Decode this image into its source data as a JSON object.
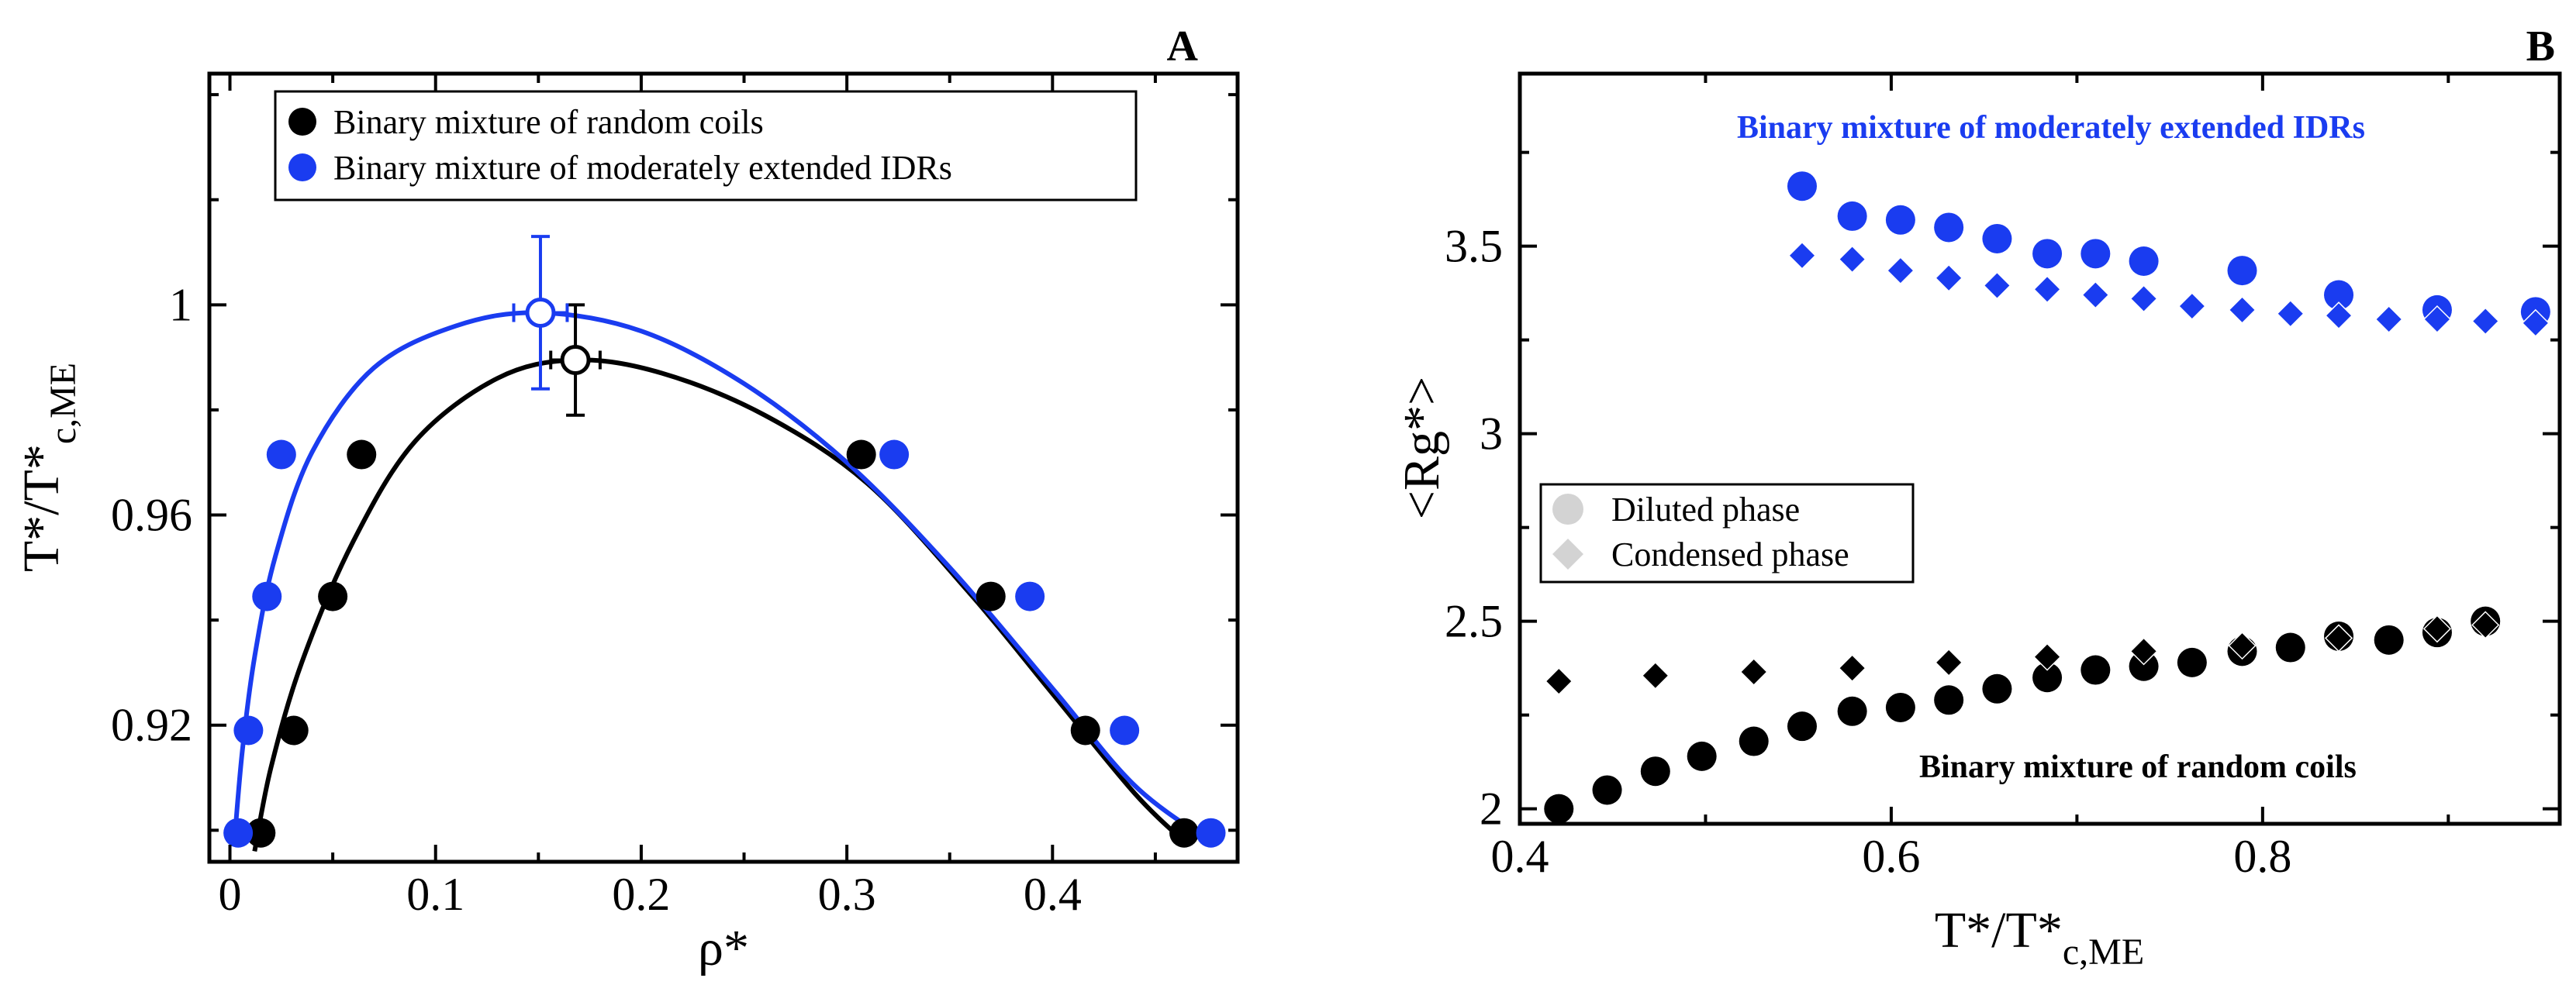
{
  "chart_data": [
    {
      "type": "scatter",
      "panel_label": "A",
      "xlabel": "ρ*",
      "ylabel": "T*/T*",
      "ylabel_sub": "c,ME",
      "xlim": [
        -0.01,
        0.49
      ],
      "ylim": [
        0.894,
        1.044
      ],
      "x_ticks": [
        0,
        0.1,
        0.2,
        0.3,
        0.4
      ],
      "x_tick_labels": [
        "0",
        "0.1",
        "0.2",
        "0.3",
        "0.4"
      ],
      "y_ticks": [
        0.92,
        0.96,
        1.0
      ],
      "y_tick_labels": [
        "0.92",
        "0.96",
        "1"
      ],
      "legend": {
        "position": "top-center",
        "entries": [
          {
            "label": "Binary mixture of random coils",
            "color": "#000000",
            "marker": "circle"
          },
          {
            "label": "Binary mixture of moderately extended IDRs",
            "color": "#1a3cf0",
            "marker": "circle"
          }
        ]
      },
      "series": [
        {
          "name": "Binary mixture of random coils",
          "color": "#000000",
          "x": [
            0.015,
            0.031,
            0.05,
            0.064,
            0.307,
            0.37,
            0.416,
            0.464
          ],
          "y": [
            0.8995,
            0.919,
            0.9445,
            0.9715,
            0.9715,
            0.9445,
            0.919,
            0.8995
          ],
          "critical_point": {
            "x": 0.168,
            "y": 0.9895,
            "x_err": 0.012,
            "y_err": 0.0105
          },
          "fit_curve": {
            "x": [
              0.012,
              0.02,
              0.035,
              0.06,
              0.09,
              0.13,
              0.168,
              0.21,
              0.26,
              0.31,
              0.36,
              0.4,
              0.44,
              0.465
            ],
            "y": [
              0.896,
              0.912,
              0.932,
              0.955,
              0.974,
              0.986,
              0.9895,
              0.987,
              0.979,
              0.966,
              0.945,
              0.926,
              0.907,
              0.8975
            ]
          }
        },
        {
          "name": "Binary mixture of moderately extended IDRs",
          "color": "#1a3cf0",
          "x": [
            0.004,
            0.009,
            0.018,
            0.025,
            0.323,
            0.389,
            0.435,
            0.477
          ],
          "y": [
            0.8995,
            0.919,
            0.9445,
            0.9715,
            0.9715,
            0.9445,
            0.919,
            0.8995
          ],
          "critical_point": {
            "x": 0.151,
            "y": 0.9985,
            "x_err": 0.013,
            "y_err": 0.0145
          },
          "fit_curve": {
            "x": [
              0.002,
              0.006,
              0.012,
              0.022,
              0.04,
              0.07,
              0.11,
              0.151,
              0.2,
              0.25,
              0.3,
              0.35,
              0.4,
              0.44,
              0.478
            ],
            "y": [
              0.897,
              0.915,
              0.933,
              0.952,
              0.972,
              0.988,
              0.996,
              0.9985,
              0.995,
              0.985,
              0.97,
              0.95,
              0.927,
              0.9085,
              0.8975
            ]
          }
        }
      ]
    },
    {
      "type": "scatter",
      "panel_label": "B",
      "xlabel": "T*/T*",
      "xlabel_sub": "c,ME",
      "ylabel": "<Rg*>",
      "xlim": [
        0.4,
        0.96
      ],
      "ylim": [
        1.96,
        3.96
      ],
      "x_ticks": [
        0.4,
        0.6,
        0.8
      ],
      "x_tick_labels": [
        "0.4",
        "0.6",
        "0.8"
      ],
      "y_ticks": [
        2.0,
        2.5,
        3.0,
        3.5
      ],
      "y_tick_labels": [
        "2",
        "2.5",
        "3",
        "3.5"
      ],
      "annotations": [
        {
          "text": "Binary mixture of moderately extended IDRs",
          "color": "#1a3cf0",
          "position": "top-right"
        },
        {
          "text": "Binary mixture of random coils",
          "color": "#000000",
          "position": "lower-right"
        }
      ],
      "legend": {
        "position": "center-left",
        "entries": [
          {
            "label": "Diluted phase",
            "color": "#d3d3d3",
            "marker": "circle"
          },
          {
            "label": "Condensed phase",
            "color": "#d3d3d3",
            "marker": "diamond"
          }
        ]
      },
      "series": [
        {
          "name": "Random coils - Diluted phase",
          "color": "#000000",
          "marker": "circle",
          "x": [
            0.421,
            0.447,
            0.473,
            0.498,
            0.526,
            0.552,
            0.579,
            0.605,
            0.631,
            0.657,
            0.684,
            0.71,
            0.736,
            0.762,
            0.789,
            0.815,
            0.841,
            0.868,
            0.894,
            0.92
          ],
          "y": [
            2.0,
            2.05,
            2.1,
            2.14,
            2.18,
            2.22,
            2.26,
            2.27,
            2.29,
            2.32,
            2.35,
            2.37,
            2.38,
            2.39,
            2.42,
            2.43,
            2.46,
            2.45,
            2.47,
            2.5
          ]
        },
        {
          "name": "Random coils - Condensed phase",
          "color": "#000000",
          "marker": "diamond",
          "x": [
            0.421,
            0.473,
            0.526,
            0.579,
            0.631,
            0.684,
            0.736,
            0.789,
            0.841,
            0.894,
            0.92
          ],
          "y": [
            2.34,
            2.355,
            2.365,
            2.375,
            2.39,
            2.405,
            2.42,
            2.435,
            2.455,
            2.48,
            2.49
          ]
        },
        {
          "name": "Moderately extended IDRs - Diluted phase",
          "color": "#1a3cf0",
          "marker": "circle",
          "x": [
            0.552,
            0.579,
            0.605,
            0.631,
            0.657,
            0.684,
            0.71,
            0.736,
            0.789,
            0.841,
            0.894,
            0.947
          ],
          "y": [
            3.66,
            3.58,
            3.57,
            3.55,
            3.52,
            3.48,
            3.48,
            3.46,
            3.435,
            3.37,
            3.33,
            3.325
          ]
        },
        {
          "name": "Moderately extended IDRs - Condensed phase",
          "color": "#1a3cf0",
          "marker": "diamond",
          "x": [
            0.552,
            0.579,
            0.605,
            0.631,
            0.657,
            0.684,
            0.71,
            0.736,
            0.762,
            0.789,
            0.815,
            0.841,
            0.868,
            0.894,
            0.92,
            0.947
          ],
          "y": [
            3.475,
            3.465,
            3.435,
            3.415,
            3.395,
            3.385,
            3.37,
            3.36,
            3.34,
            3.33,
            3.32,
            3.315,
            3.305,
            3.305,
            3.3,
            3.295
          ]
        }
      ]
    }
  ]
}
